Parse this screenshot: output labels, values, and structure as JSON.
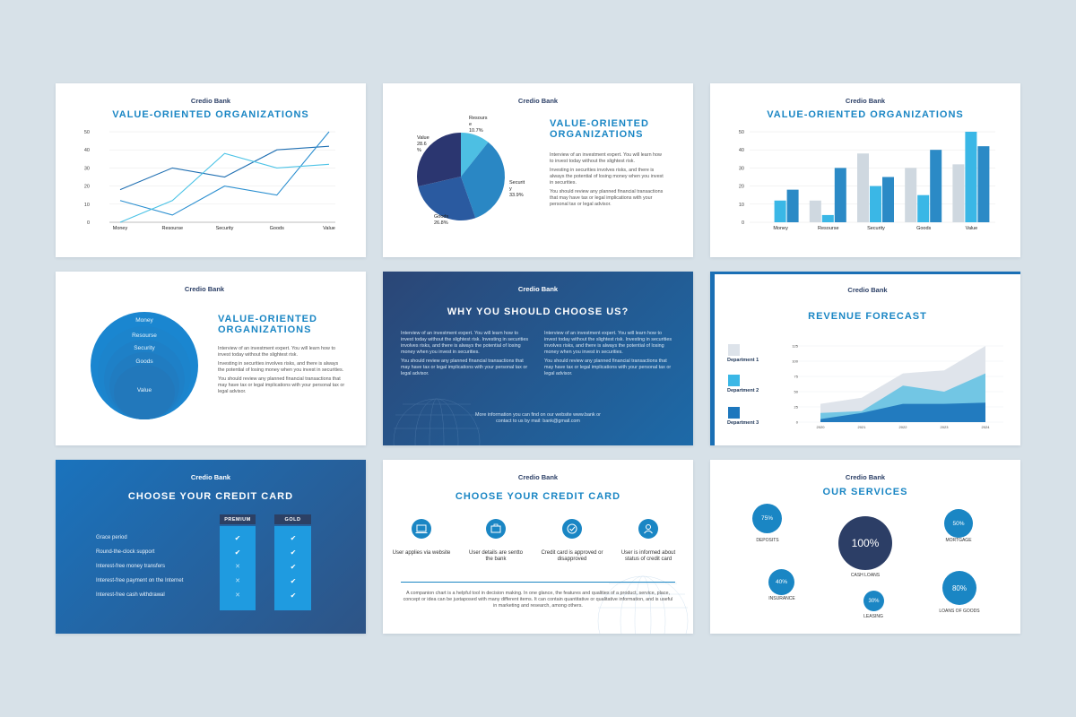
{
  "brand": "Credio Bank",
  "title_value": "VALUE-ORIENTED ORGANIZATIONS",
  "title_value_line1": "VALUE-ORIENTED",
  "title_value_line2": "ORGANIZATIONS",
  "title_choose": "WHY YOU SHOULD CHOOSE US?",
  "title_revenue": "REVENUE FORECAST",
  "title_card": "CHOOSE YOUR CREDIT CARD",
  "title_services": "OUR SERVICES",
  "body_text": {
    "p1": "Interview of an investment expert. You will learn how to invest today without the slightest risk.",
    "p2": "Investing in securities involves risks, and there is always the potential of losing money when you invest in securities.",
    "p3": "You should review any planned financial transactions that may have tax or legal implications with your personal tax or legal advisor."
  },
  "choose_col": {
    "p1": "Interview of an investment expert. You will learn how to invest today without the slightest risk. Investing in securities involves risks, and there is always the potential of losing money when you invest in securities.",
    "p2": "You should review any planned financial transactions that may have tax or legal implications with your personal tax or legal advisor.",
    "footer": "More information you can find on our website www.bank or contact to us by mail: bank@gmail.com"
  },
  "chart_data": [
    {
      "type": "line",
      "categories": [
        "Money",
        "Resourse",
        "Security",
        "Goods",
        "Value"
      ],
      "ylim": [
        0,
        50
      ],
      "yticks": [
        0,
        10,
        20,
        30,
        40,
        50
      ],
      "series": [
        {
          "values": [
            18,
            30,
            25,
            40,
            42
          ],
          "color": "#1f6fb2"
        },
        {
          "values": [
            12,
            4,
            20,
            15,
            50
          ],
          "color": "#2b8fd0"
        },
        {
          "values": [
            0,
            12,
            38,
            30,
            32
          ],
          "color": "#4cc3e6"
        }
      ]
    },
    {
      "type": "pie",
      "slices": [
        {
          "label": "Resourse",
          "value": 10.7,
          "label_text": "Resours e 10.7%",
          "color": "#4dbfe3"
        },
        {
          "label": "Security",
          "value": 33.9,
          "label_text": "Securit y 33.9%",
          "color": "#2a87c4"
        },
        {
          "label": "Goods",
          "value": 26.8,
          "label_text": "Goods 26.8%",
          "color": "#2a5aa0"
        },
        {
          "label": "Value",
          "value": 28.6,
          "label_text": "Value 28.6 %",
          "color": "#2b3670"
        }
      ]
    },
    {
      "type": "bar",
      "categories": [
        "Money",
        "Resourse",
        "Security",
        "Goods",
        "Value"
      ],
      "ylim": [
        0,
        50
      ],
      "yticks": [
        0,
        10,
        20,
        30,
        40,
        50
      ],
      "series": [
        {
          "values": [
            0,
            12,
            38,
            30,
            32
          ],
          "color": "#cfd8e0"
        },
        {
          "values": [
            12,
            4,
            20,
            15,
            50
          ],
          "color": "#3ab7e6"
        },
        {
          "values": [
            18,
            30,
            25,
            40,
            42
          ],
          "color": "#2b8ac6"
        }
      ]
    },
    {
      "type": "area",
      "categories": [
        "2020",
        "2021",
        "2022",
        "2023",
        "2024"
      ],
      "ylim": [
        0,
        125
      ],
      "yticks": [
        0,
        25,
        50,
        75,
        100,
        125
      ],
      "series": [
        {
          "name": "Department 1",
          "values": [
            30,
            40,
            80,
            85,
            125
          ],
          "color": "#dde3ea"
        },
        {
          "name": "Department 2",
          "values": [
            15,
            18,
            60,
            50,
            80
          ],
          "color": "#6cc4e4"
        },
        {
          "name": "Department 3",
          "values": [
            5,
            15,
            30,
            30,
            32
          ],
          "color": "#1d77bd"
        }
      ]
    }
  ],
  "onion": {
    "labels": [
      "Money",
      "Resourse",
      "Security",
      "Goods",
      "Value"
    ]
  },
  "card_compare": {
    "headers": [
      "PREMIUM",
      "GOLD"
    ],
    "rows": [
      {
        "label": "Grace period",
        "premium": true,
        "gold": true
      },
      {
        "label": "Round-the-clock support",
        "premium": true,
        "gold": true
      },
      {
        "label": "Interest-free money transfers",
        "premium": false,
        "gold": true
      },
      {
        "label": "Interest-free payment on the Internet",
        "premium": false,
        "gold": true
      },
      {
        "label": "Interest-free cash withdrawal",
        "premium": false,
        "gold": true
      }
    ]
  },
  "card_steps": {
    "steps": [
      {
        "label": "User applies via website",
        "icon": "laptop-icon"
      },
      {
        "label": "User details are sentto the bank",
        "icon": "briefcase-icon"
      },
      {
        "label": "Credit card is approved or disapproved",
        "icon": "check-circle-icon"
      },
      {
        "label": "User is informed about status of credit card",
        "icon": "user-icon"
      }
    ],
    "text": "A companion chart is a helpful tool in decision making. In one glance, the features and qualities of a product, service, place, concept or idea can be juxtaposed with many different items. It can contain quantitative or qualitative information, and is useful in marketing and research, among others."
  },
  "services": [
    {
      "pct": "75%",
      "label": "DEPOSITS",
      "fill": 0.75
    },
    {
      "pct": "100%",
      "label": "CASH LOANS",
      "fill": 1.0
    },
    {
      "pct": "50%",
      "label": "MORTGAGE",
      "fill": 0.5
    },
    {
      "pct": "40%",
      "label": "INSURANCE",
      "fill": 0.4
    },
    {
      "pct": "30%",
      "label": "LEASING",
      "fill": 0.3
    },
    {
      "pct": "80%",
      "label": "LOANS OF GOODS",
      "fill": 0.8
    }
  ],
  "colors": {
    "accent": "#1a86c4",
    "navy": "#2b3f66",
    "bg": "#d7e1e8"
  }
}
